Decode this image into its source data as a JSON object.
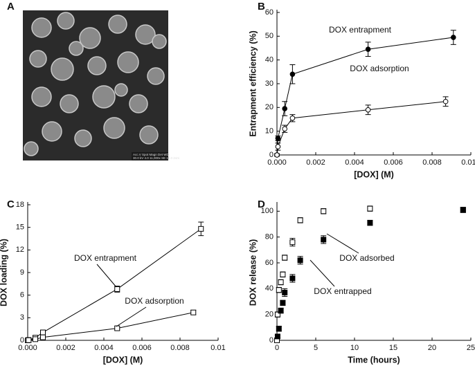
{
  "chart_data": [
    {
      "type": "image",
      "panel": "A",
      "caption": [
        "Acc.V Spot Magn Det WD",
        "30.0 kV 4.0 11,000x SE 12.0 24Ai"
      ]
    },
    {
      "type": "line",
      "panel": "B",
      "xlabel": "[DOX] (M)",
      "ylabel": "Entrapment efficiency (%)",
      "xlim": [
        0,
        0.01
      ],
      "ylim": [
        0,
        60
      ],
      "xticks": [
        {
          "value": 0,
          "label": "0.000"
        },
        {
          "value": 0.002,
          "label": "0.002"
        },
        {
          "value": 0.004,
          "label": "0.004"
        },
        {
          "value": 0.006,
          "label": "0.006"
        },
        {
          "value": 0.008,
          "label": "0.008"
        },
        {
          "value": 0.01,
          "label": "0.010"
        }
      ],
      "yticks": [
        0,
        10,
        20,
        30,
        40,
        50,
        60
      ],
      "series": [
        {
          "name": "DOX entrapment",
          "color": "#000000",
          "marker": "circle",
          "filled": true,
          "x": [
            0,
            5e-05,
            0.0004,
            0.0008,
            0.0047,
            0.0091
          ],
          "values": [
            0,
            7,
            19.5,
            34,
            44.5,
            49.5
          ],
          "errors": [
            0.5,
            1,
            3,
            4,
            3,
            3
          ]
        },
        {
          "name": "DOX adsorption",
          "color": "#000000",
          "marker": "circle",
          "filled": false,
          "x": [
            0,
            5e-05,
            0.0004,
            0.0008,
            0.0047,
            0.0087
          ],
          "values": [
            0,
            3.5,
            11,
            15.5,
            19,
            22.5
          ],
          "errors": [
            0.5,
            1.5,
            1.5,
            1.5,
            2,
            2
          ]
        }
      ]
    },
    {
      "type": "line",
      "panel": "C",
      "xlabel": "[DOX] (M)",
      "ylabel": "DOX loading (%)",
      "xlim": [
        0,
        0.01
      ],
      "ylim": [
        0,
        18
      ],
      "xticks": [
        {
          "value": 0,
          "label": "0.000"
        },
        {
          "value": 0.002,
          "label": "0.002"
        },
        {
          "value": 0.004,
          "label": "0.004"
        },
        {
          "value": 0.006,
          "label": "0.006"
        },
        {
          "value": 0.008,
          "label": "0.008"
        },
        0.01
      ],
      "yticks": [
        0,
        3,
        6,
        9,
        12,
        15,
        18
      ],
      "series": [
        {
          "name": "DOX entrapment",
          "color": "#000000",
          "marker": "square",
          "filled": false,
          "x": [
            0,
            5e-05,
            0.0004,
            0.0008,
            0.0047,
            0.0091
          ],
          "values": [
            0,
            0.05,
            0.35,
            1.05,
            6.8,
            14.8
          ],
          "errors": [
            0.1,
            0.1,
            0.2,
            0.3,
            0.4,
            0.9
          ]
        },
        {
          "name": "DOX adsorption",
          "color": "#000000",
          "marker": "square",
          "filled": false,
          "x": [
            0,
            5e-05,
            0.0004,
            0.0008,
            0.0047,
            0.0087
          ],
          "values": [
            0,
            0.02,
            0.15,
            0.4,
            1.6,
            3.7
          ],
          "errors": [
            0.1,
            0.1,
            0.1,
            0.1,
            0.2,
            0.3
          ]
        }
      ]
    },
    {
      "type": "scatter",
      "panel": "D",
      "xlabel": "Time (hours)",
      "ylabel": "DOX release (%)",
      "xlim": [
        0,
        25
      ],
      "ylim": [
        0,
        105
      ],
      "xticks": [
        0,
        5,
        10,
        15,
        20,
        25
      ],
      "yticks": [
        0,
        20,
        40,
        60,
        80,
        100
      ],
      "series": [
        {
          "name": "DOX adsorbed",
          "color": "#000000",
          "marker": "square",
          "filled": false,
          "x": [
            0,
            0.083,
            0.25,
            0.5,
            0.75,
            1,
            2,
            3,
            6,
            12,
            24
          ],
          "values": [
            0,
            20,
            39,
            45,
            51,
            64,
            76,
            93,
            100,
            102,
            101
          ],
          "errors": [
            1,
            2,
            2,
            2,
            2,
            2,
            3,
            2,
            2,
            2,
            2
          ]
        },
        {
          "name": "DOX entrapped",
          "color": "#000000",
          "marker": "square",
          "filled": true,
          "x": [
            0.083,
            0.25,
            0.5,
            0.75,
            1,
            2,
            3,
            6,
            12,
            24
          ],
          "values": [
            3,
            9,
            23,
            29,
            37,
            48,
            62,
            78,
            91,
            101
          ],
          "errors": [
            1,
            2,
            2,
            2,
            3,
            3,
            3,
            3,
            2,
            2
          ]
        }
      ]
    }
  ]
}
